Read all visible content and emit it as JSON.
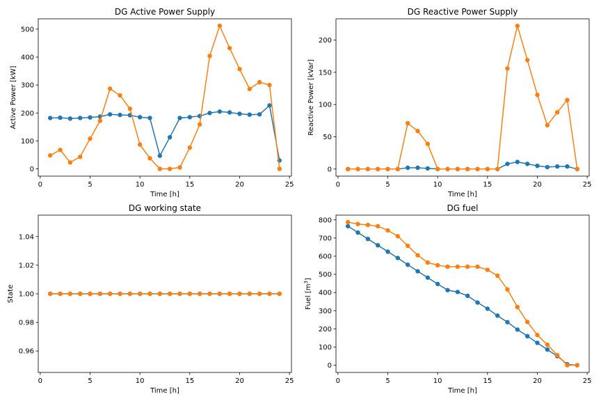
{
  "chart_data": [
    {
      "type": "line",
      "title": "DG Active Power Supply",
      "xlabel": "Time [h]",
      "ylabel": "Active Power [kW]",
      "xlim": [
        -0.2,
        25.2
      ],
      "ylim": [
        -26,
        537
      ],
      "xticks": [
        0,
        5,
        10,
        15,
        20,
        25
      ],
      "yticks": [
        0,
        100,
        200,
        300,
        400,
        500
      ],
      "tick_labels_x": [
        "0",
        "5",
        "10",
        "15",
        "20",
        "25"
      ],
      "tick_labels_y": [
        "0",
        "100",
        "200",
        "300",
        "400",
        "500"
      ],
      "grid": false,
      "x": [
        1,
        2,
        3,
        4,
        5,
        6,
        7,
        8,
        9,
        10,
        11,
        12,
        13,
        14,
        15,
        16,
        17,
        18,
        19,
        20,
        21,
        22,
        23,
        24
      ],
      "series": [
        {
          "color": "#1f77b4",
          "values": [
            182,
            183,
            180,
            182,
            184,
            187,
            195,
            193,
            192,
            185,
            182,
            47,
            113,
            182,
            185,
            189,
            200,
            205,
            202,
            197,
            194,
            195,
            227,
            30
          ]
        },
        {
          "color": "#ff7f0e",
          "values": [
            48,
            68,
            23,
            43,
            108,
            172,
            287,
            263,
            215,
            87,
            38,
            0,
            0,
            5,
            76,
            159,
            404,
            512,
            432,
            357,
            286,
            310,
            300,
            0
          ]
        }
      ]
    },
    {
      "type": "line",
      "title": "DG Reactive Power Supply",
      "xlabel": "Time [h]",
      "ylabel": "Reactive Power [kVar]",
      "xlim": [
        -0.2,
        25.2
      ],
      "ylim": [
        -11,
        233
      ],
      "xticks": [
        0,
        5,
        10,
        15,
        20,
        25
      ],
      "yticks": [
        0,
        50,
        100,
        150,
        200
      ],
      "tick_labels_x": [
        "0",
        "5",
        "10",
        "15",
        "20",
        "25"
      ],
      "tick_labels_y": [
        "0",
        "50",
        "100",
        "150",
        "200"
      ],
      "grid": false,
      "x": [
        1,
        2,
        3,
        4,
        5,
        6,
        7,
        8,
        9,
        10,
        11,
        12,
        13,
        14,
        15,
        16,
        17,
        18,
        19,
        20,
        21,
        22,
        23,
        24
      ],
      "series": [
        {
          "color": "#1f77b4",
          "values": [
            0,
            0,
            0,
            0,
            0,
            0,
            2,
            2,
            1,
            0,
            0,
            0,
            0,
            0,
            0,
            0,
            8,
            11,
            8,
            5,
            3,
            4,
            4,
            0
          ]
        },
        {
          "color": "#ff7f0e",
          "values": [
            0,
            0,
            0,
            0,
            0,
            0,
            71,
            59,
            39,
            0,
            0,
            0,
            0,
            0,
            0,
            0,
            156,
            222,
            169,
            115,
            68,
            88,
            107,
            0
          ]
        }
      ]
    },
    {
      "type": "line",
      "title": "DG working state",
      "xlabel": "Time [h]",
      "ylabel": "State",
      "xlim": [
        -0.2,
        25.2
      ],
      "ylim": [
        0.945,
        1.055
      ],
      "xticks": [
        0,
        5,
        10,
        15,
        20,
        25
      ],
      "yticks": [
        0.96,
        0.98,
        1.0,
        1.02,
        1.04
      ],
      "tick_labels_x": [
        "0",
        "5",
        "10",
        "15",
        "20",
        "25"
      ],
      "tick_labels_y": [
        "0.96",
        "0.98",
        "1.00",
        "1.02",
        "1.04"
      ],
      "grid": false,
      "x": [
        1,
        2,
        3,
        4,
        5,
        6,
        7,
        8,
        9,
        10,
        11,
        12,
        13,
        14,
        15,
        16,
        17,
        18,
        19,
        20,
        21,
        22,
        23,
        24
      ],
      "series": [
        {
          "color": "#1f77b4",
          "values": [
            1,
            1,
            1,
            1,
            1,
            1,
            1,
            1,
            1,
            1,
            1,
            1,
            1,
            1,
            1,
            1,
            1,
            1,
            1,
            1,
            1,
            1,
            1,
            1
          ]
        },
        {
          "color": "#ff7f0e",
          "values": [
            1,
            1,
            1,
            1,
            1,
            1,
            1,
            1,
            1,
            1,
            1,
            1,
            1,
            1,
            1,
            1,
            1,
            1,
            1,
            1,
            1,
            1,
            1,
            1
          ]
        }
      ]
    },
    {
      "type": "line",
      "title": "DG fuel",
      "xlabel": "Time [h]",
      "ylabel": "Fuel [m",
      "ylabel_sup": "3",
      "ylabel_end": "]",
      "xlim": [
        -0.2,
        25.2
      ],
      "ylim": [
        -40,
        826
      ],
      "xticks": [
        0,
        5,
        10,
        15,
        20,
        25
      ],
      "yticks": [
        0,
        100,
        200,
        300,
        400,
        500,
        600,
        700,
        800
      ],
      "tick_labels_x": [
        "0",
        "5",
        "10",
        "15",
        "20",
        "25"
      ],
      "tick_labels_y": [
        "0",
        "100",
        "200",
        "300",
        "400",
        "500",
        "600",
        "700",
        "800"
      ],
      "grid": false,
      "x": [
        1,
        2,
        3,
        4,
        5,
        6,
        7,
        8,
        9,
        10,
        11,
        12,
        13,
        14,
        15,
        16,
        17,
        18,
        19,
        20,
        21,
        22,
        23,
        24
      ],
      "series": [
        {
          "color": "#1f77b4",
          "values": [
            765,
            730,
            695,
            660,
            625,
            590,
            553,
            517,
            482,
            447,
            413,
            403,
            382,
            345,
            311,
            273,
            237,
            196,
            160,
            123,
            86,
            50,
            5,
            0
          ]
        },
        {
          "color": "#ff7f0e",
          "values": [
            787,
            777,
            772,
            765,
            742,
            710,
            657,
            605,
            565,
            550,
            542,
            542,
            542,
            542,
            525,
            493,
            417,
            320,
            238,
            166,
            113,
            55,
            0,
            0
          ]
        }
      ]
    }
  ]
}
